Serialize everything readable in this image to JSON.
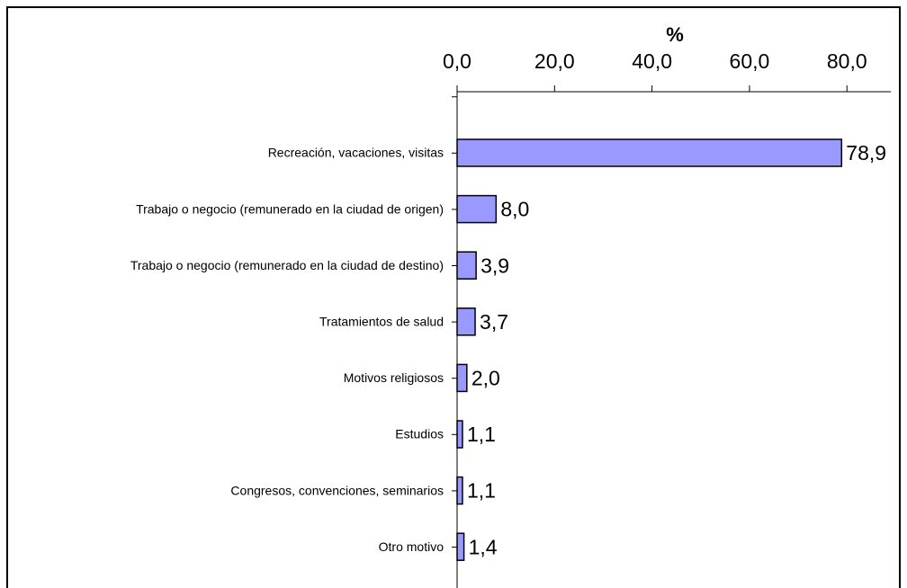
{
  "chart_data": {
    "type": "bar",
    "orientation": "horizontal",
    "x_label": "%",
    "categories": [
      "Recreación, vacaciones, visitas",
      "Trabajo o negocio (remunerado en la ciudad de origen)",
      "Trabajo o negocio (remunerado en la ciudad de destino)",
      "Tratamientos de salud",
      "Motivos religiosos",
      "Estudios",
      "Congresos, convenciones, seminarios",
      "Otro motivo"
    ],
    "values": [
      78.9,
      8.0,
      3.9,
      3.7,
      2.0,
      1.1,
      1.1,
      1.4
    ],
    "value_labels": [
      "78,9",
      "8,0",
      "3,9",
      "3,7",
      "2,0",
      "1,1",
      "1,1",
      "1,4"
    ],
    "color": "#9999ff",
    "xlim": [
      0,
      89
    ],
    "xticks": [
      {
        "value": 0,
        "label": "0,0"
      },
      {
        "value": 20,
        "label": "20,0"
      },
      {
        "value": 40,
        "label": "40,0"
      },
      {
        "value": 60,
        "label": "60,0"
      },
      {
        "value": 80,
        "label": "80,0"
      }
    ],
    "grid": false
  }
}
